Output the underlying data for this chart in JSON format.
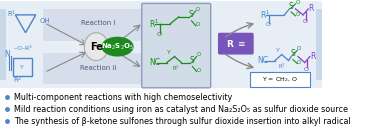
{
  "bg_color": "#ffffff",
  "scheme_bg": "#e8eef5",
  "bullet_color": "#4a86c8",
  "bullet_points": [
    "Multi-component reactions with high chemoselectivity",
    "Mild reaction conditions using iron as catalyst and Na₂S₂O₅ as sulfur dioxide source",
    "The synthesis of β-ketone sulfones through sulfur dioxide insertion into alkyl radical"
  ],
  "bullet_fontsize": 5.8,
  "green": "#1a8a1a",
  "blue": "#4a86c8",
  "purple": "#8844bb",
  "gray": "#888888",
  "dark": "#222222",
  "arrow_gray": "#888888",
  "fe_bg": "#e8e8e8",
  "fe_border": "#aaaaaa",
  "na_green": "#1c8a1c",
  "rxn_bg": "#d0d8e8",
  "center_box_bg": "#d0dce8",
  "center_box_edge": "#8899bb",
  "alkyne_purple_bg": "#7755bb",
  "y_box_edge": "#4a86c8",
  "left_bar_bg": "#c8d8e8"
}
